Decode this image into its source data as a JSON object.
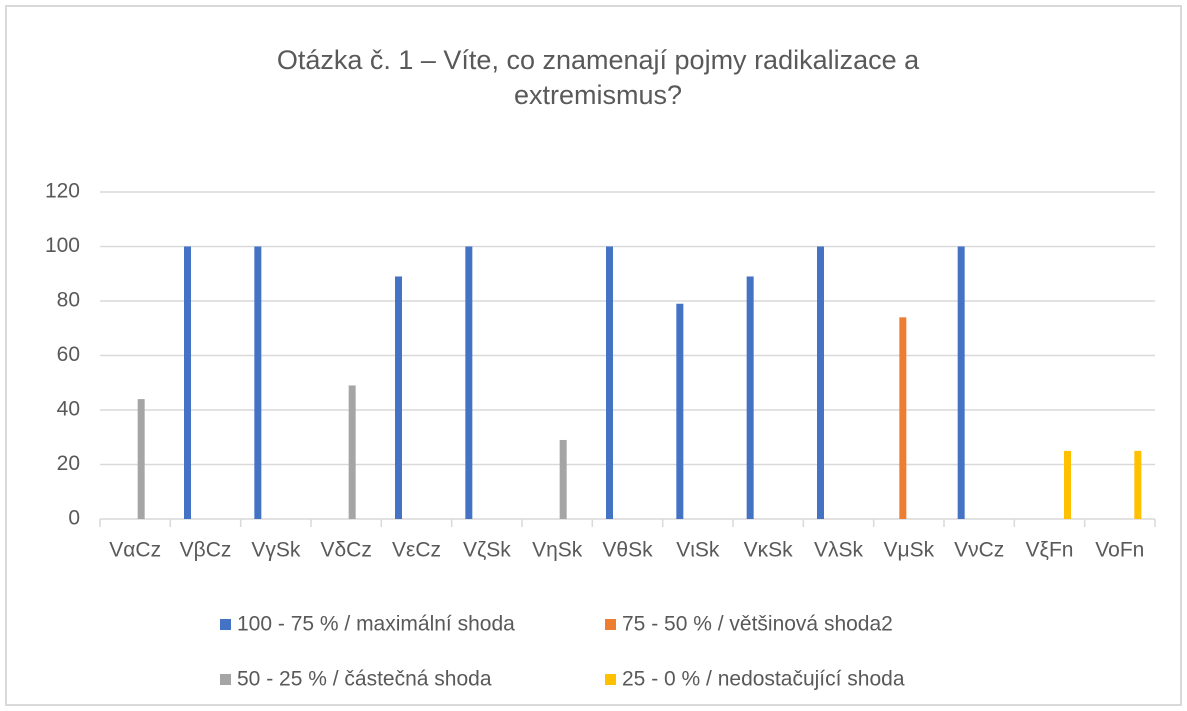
{
  "chart_data": {
    "type": "bar",
    "title": [
      "Otázka č. 1 – Víte, co znamenají  pojmy radikalizace a",
      "extremismus?"
    ],
    "categories": [
      "VαCz",
      "VβCz",
      "VγSk",
      "VδCz",
      "VεCz",
      "VζSk",
      "VηSk",
      "VθSk",
      "VιSk",
      "VκSk",
      "VλSk",
      "VμSk",
      "VνCz",
      "VξFn",
      "VoFn"
    ],
    "series": [
      {
        "name": "100 - 75 % / maximální  shoda",
        "color": "#4472c4",
        "values": [
          null,
          100,
          100,
          null,
          89,
          100,
          null,
          100,
          79,
          89,
          100,
          null,
          100,
          null,
          null
        ]
      },
      {
        "name": "75 - 50 % / většinová shoda2",
        "color": "#ed7d31",
        "values": [
          null,
          null,
          null,
          null,
          null,
          null,
          null,
          null,
          null,
          null,
          null,
          74,
          null,
          null,
          null
        ]
      },
      {
        "name": "50 - 25 % / částečná shoda",
        "color": "#a5a5a5",
        "values": [
          44,
          null,
          null,
          49,
          null,
          null,
          29,
          null,
          null,
          null,
          null,
          null,
          null,
          null,
          null
        ]
      },
      {
        "name": "25 - 0 % / nedostačující shoda",
        "color": "#ffc000",
        "values": [
          null,
          null,
          null,
          null,
          null,
          null,
          null,
          null,
          null,
          null,
          null,
          null,
          null,
          25,
          25
        ]
      }
    ],
    "ylim": [
      0,
      120
    ],
    "yticks": [
      0,
      20,
      40,
      60,
      80,
      100,
      120
    ],
    "grid": true
  }
}
